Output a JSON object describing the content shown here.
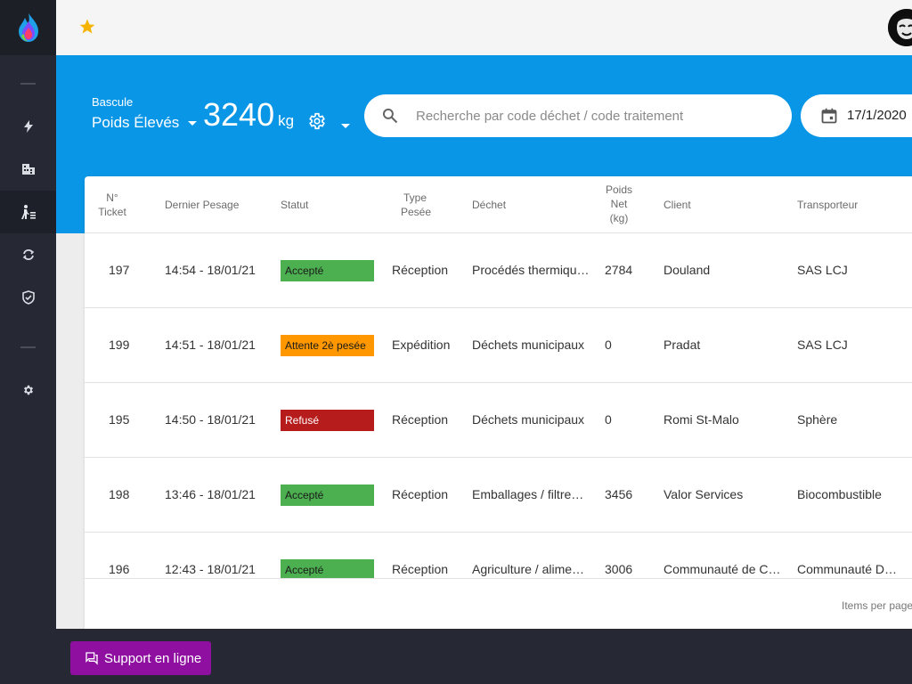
{
  "topbar": {
    "favorite_icon": "star-icon",
    "avatar_icon": "user-avatar"
  },
  "sidebar": {
    "logo_icon": "flame-logo-icon",
    "items": [
      {
        "name": "lightning-icon"
      },
      {
        "name": "building-icon"
      },
      {
        "name": "person-weighing-icon",
        "active": true
      },
      {
        "name": "refresh-icon"
      },
      {
        "name": "shield-check-icon"
      },
      {
        "name": "gear-icon"
      }
    ]
  },
  "scale": {
    "label": "Bascule",
    "selected": "Poids Élevés",
    "weight_value": "3240",
    "weight_unit": "kg"
  },
  "search": {
    "placeholder": "Recherche par code déchet / code traitement"
  },
  "date": {
    "value": "17/1/2020"
  },
  "table": {
    "headers": {
      "ticket": [
        "N°",
        "Ticket"
      ],
      "last_weighing": "Dernier Pesage",
      "status": "Statut",
      "type": [
        "Type",
        "Pesée"
      ],
      "waste": "Déchet",
      "net": [
        "Poids",
        "Net",
        "(kg)"
      ],
      "client": "Client",
      "carrier": "Transporteur"
    },
    "rows": [
      {
        "ticket": "197",
        "date": "14:54 - 18/01/21",
        "status": "Accepté",
        "type": "Réception",
        "waste": "Procédés thermiqu…",
        "net": "2784",
        "client": "Douland",
        "carrier": "SAS LCJ"
      },
      {
        "ticket": "199",
        "date": "14:51 - 18/01/21",
        "status": "Attente 2è pesée",
        "type": "Expédition",
        "waste": "Déchets municipaux",
        "net": "0",
        "client": "Pradat",
        "carrier": "SAS LCJ"
      },
      {
        "ticket": "195",
        "date": "14:50 - 18/01/21",
        "status": "Refusé",
        "type": "Réception",
        "waste": "Déchets municipaux",
        "net": "0",
        "client": "Romi St-Malo",
        "carrier": "Sphère"
      },
      {
        "ticket": "198",
        "date": "13:46 - 18/01/21",
        "status": "Accepté",
        "type": "Réception",
        "waste": "Emballages / filtre…",
        "net": "3456",
        "client": "Valor Services",
        "carrier": "Biocombustible"
      },
      {
        "ticket": "196",
        "date": "12:43 - 18/01/21",
        "status": "Accepté",
        "type": "Réception",
        "waste": "Agriculture / alime…",
        "net": "3006",
        "client": "Communauté de C…",
        "carrier": "Communauté D…"
      }
    ],
    "footer": "Items per page:"
  },
  "support": {
    "label": "Support en ligne"
  },
  "colors": {
    "accepted": "#4caf50",
    "waiting": "#ff9800",
    "refused": "#b71c1c",
    "band": "#0a96e6",
    "support": "#8e0fa0"
  }
}
